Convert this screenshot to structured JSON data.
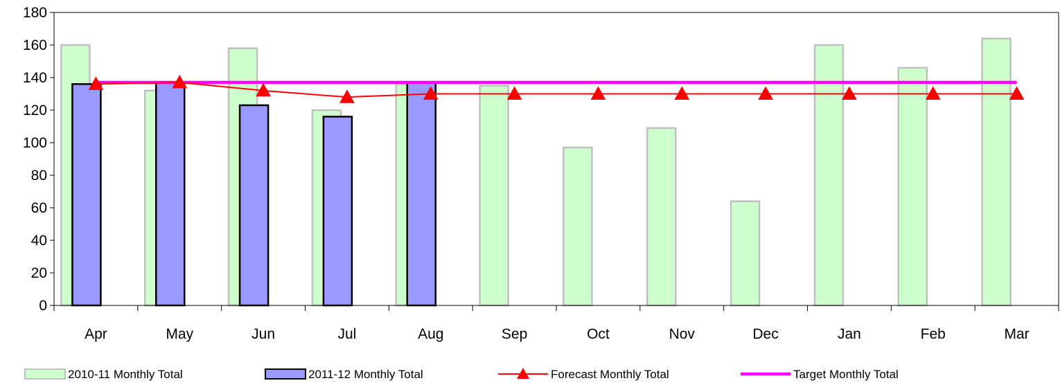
{
  "chart_data": {
    "type": "bar",
    "categories": [
      "Apr",
      "May",
      "Jun",
      "Jul",
      "Aug",
      "Sep",
      "Oct",
      "Nov",
      "Dec",
      "Jan",
      "Feb",
      "Mar"
    ],
    "ylim": [
      0,
      180
    ],
    "yticks": [
      0,
      20,
      40,
      60,
      80,
      100,
      120,
      140,
      160,
      180
    ],
    "grid": false,
    "legend_position": "bottom",
    "series": [
      {
        "name": "2010-11 Monthly Total",
        "kind": "bar",
        "color": "#ccffcc",
        "stroke": "#c0c0c0",
        "values": [
          160,
          132,
          158,
          120,
          136,
          135,
          97,
          109,
          64,
          160,
          146,
          164
        ]
      },
      {
        "name": "2011-12 Monthly Total",
        "kind": "bar",
        "color": "#9999ff",
        "stroke": "#000000",
        "values": [
          136,
          137,
          123,
          116,
          137,
          null,
          null,
          null,
          null,
          null,
          null,
          null
        ]
      },
      {
        "name": "Forecast Monthly Total",
        "kind": "line",
        "marker": "triangle",
        "color": "#ff0000",
        "values": [
          136,
          137,
          132,
          128,
          130,
          130,
          130,
          130,
          130,
          130,
          130,
          130
        ]
      },
      {
        "name": "Target Monthly Total",
        "kind": "line",
        "color": "#ff00ff",
        "values": [
          137,
          137,
          137,
          137,
          137,
          137,
          137,
          137,
          137,
          137,
          137,
          137
        ]
      }
    ]
  }
}
